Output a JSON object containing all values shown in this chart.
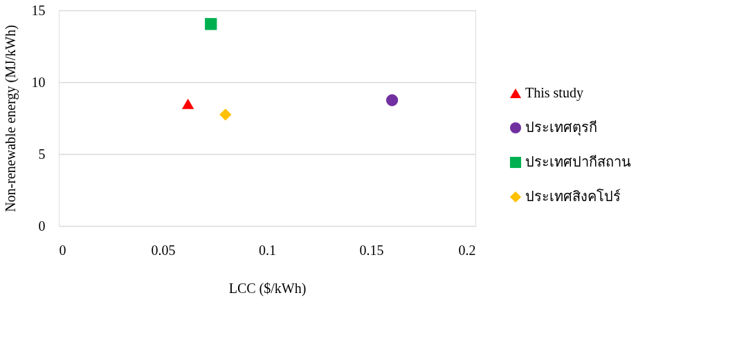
{
  "chart_data": {
    "type": "scatter",
    "xlabel": "LCC ($/kWh)",
    "ylabel": "Non-renewable energy (MJ/kWh)",
    "xlim": [
      0,
      0.2
    ],
    "xticks": [
      0,
      0.05,
      0.1,
      0.15,
      0.2
    ],
    "ylim": [
      0,
      15
    ],
    "yticks": [
      0,
      5,
      10,
      15
    ],
    "grid": "y",
    "legend": "right",
    "series": [
      {
        "name": "This study",
        "color": "#ff0000",
        "marker": "triangle",
        "x": [
          0.062
        ],
        "values": [
          8.5
        ]
      },
      {
        "name": "ประเทศตุรกี",
        "color": "#7030a0",
        "marker": "circle",
        "x": [
          0.16
        ],
        "values": [
          8.75
        ]
      },
      {
        "name": "ประเทศปากีสถาน",
        "color": "#00b050",
        "marker": "square",
        "x": [
          0.073
        ],
        "values": [
          14.05
        ]
      },
      {
        "name": "ประเทศสิงคโปร์",
        "color": "#ffc000",
        "marker": "diamond",
        "x": [
          0.08
        ],
        "values": [
          7.75
        ]
      }
    ]
  }
}
